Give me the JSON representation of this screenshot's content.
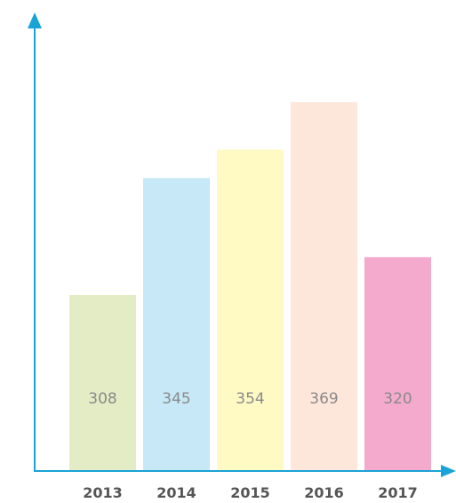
{
  "chart_data": {
    "type": "bar",
    "title": "",
    "xlabel": "",
    "ylabel": "",
    "categories": [
      "2013",
      "2014",
      "2015",
      "2016",
      "2017"
    ],
    "values": [
      308,
      345,
      354,
      369,
      320
    ],
    "colors": [
      "#e3ecc4",
      "#c6e8f7",
      "#fff9c4",
      "#fde6da",
      "#f3aacd"
    ],
    "axis_color": "#1aa3d6",
    "grid": false
  }
}
